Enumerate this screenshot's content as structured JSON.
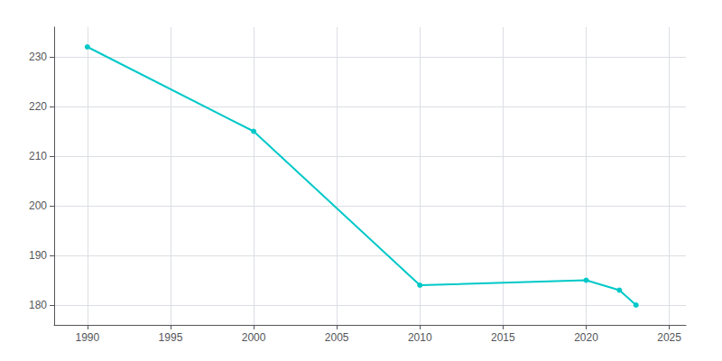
{
  "chart_data": {
    "type": "line",
    "x": [
      1990,
      2000,
      2010,
      2020,
      2022,
      2023
    ],
    "values": [
      232,
      215,
      184,
      185,
      183,
      180
    ],
    "color": "#00C8C8",
    "marker": "circle",
    "xlim": [
      1988,
      2026
    ],
    "ylim": [
      176,
      236
    ],
    "xticks": [
      1990,
      1995,
      2000,
      2005,
      2010,
      2015,
      2020,
      2025
    ],
    "yticks": [
      180,
      190,
      200,
      210,
      220,
      230
    ],
    "grid": true
  }
}
